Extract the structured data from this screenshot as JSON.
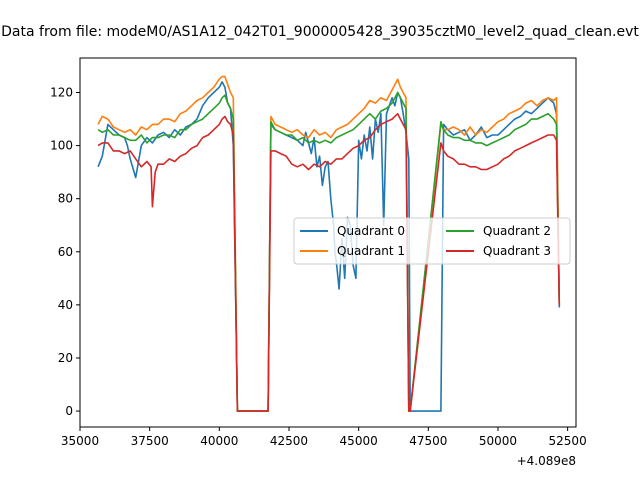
{
  "chart_data": {
    "type": "line",
    "title": "Data from file: modeM0/AS1A12_042T01_9000005428_39035cztM0_level2_quad_clean.evt",
    "x_offset_label": "+4.089e8",
    "xlim": [
      35000,
      52800
    ],
    "ylim": [
      -6,
      133
    ],
    "x_ticks": [
      35000,
      37500,
      40000,
      42500,
      45000,
      47500,
      50000,
      52500
    ],
    "x_tick_labels": [
      "35000",
      "37500",
      "40000",
      "42500",
      "45000",
      "47500",
      "50000",
      "52500"
    ],
    "y_ticks": [
      0,
      20,
      40,
      60,
      80,
      100,
      120
    ],
    "y_tick_labels": [
      "0",
      "20",
      "40",
      "60",
      "80",
      "100",
      "120"
    ],
    "legend": {
      "placement": "center-right",
      "columns": 2
    },
    "series": [
      {
        "name": "Quadrant 0",
        "color": "#1f77b4",
        "x": [
          35650,
          35800,
          36000,
          36200,
          36400,
          36600,
          36700,
          36800,
          37000,
          37200,
          37400,
          37600,
          37800,
          38000,
          38200,
          38400,
          38600,
          38800,
          39000,
          39200,
          39400,
          39600,
          39800,
          40000,
          40100,
          40200,
          40300,
          40400,
          40500,
          40650,
          41750,
          41850,
          42000,
          42200,
          42400,
          42600,
          42800,
          43000,
          43100,
          43200,
          43300,
          43400,
          43500,
          43600,
          43700,
          43800,
          43900,
          44000,
          44100,
          44150,
          44200,
          44300,
          44400,
          44500,
          44600,
          44700,
          44800,
          44900,
          45000,
          45100,
          45200,
          45300,
          45400,
          45500,
          45600,
          45700,
          45800,
          45900,
          46000,
          46100,
          46200,
          46300,
          46400,
          46500,
          46600,
          46700,
          46800,
          46850,
          47950,
          48050,
          48200,
          48400,
          48600,
          48800,
          49000,
          49200,
          49400,
          49600,
          49800,
          50000,
          50200,
          50400,
          50600,
          50800,
          51000,
          51200,
          51400,
          51600,
          51800,
          52000,
          52100,
          52200
        ],
        "values": [
          92,
          96,
          108,
          106,
          104,
          103,
          100,
          95,
          88,
          100,
          103,
          101,
          104,
          105,
          103,
          106,
          104,
          107,
          108,
          110,
          115,
          118,
          120,
          122,
          124,
          122,
          116,
          114,
          100,
          0,
          0,
          108,
          106,
          105,
          104,
          103,
          102,
          100,
          105,
          101,
          97,
          103,
          92,
          96,
          85,
          92,
          94,
          80,
          70,
          60,
          56,
          46,
          65,
          50,
          73,
          70,
          55,
          50,
          102,
          95,
          104,
          98,
          107,
          95,
          110,
          105,
          112,
          70,
          112,
          115,
          118,
          115,
          120,
          118,
          112,
          105,
          95,
          0,
          0,
          108,
          106,
          104,
          105,
          106,
          102,
          104,
          107,
          103,
          104,
          104,
          106,
          108,
          110,
          111,
          113,
          112,
          114,
          116,
          118,
          116,
          112,
          39
        ]
      },
      {
        "name": "Quadrant 1",
        "color": "#ff7f0e",
        "x": [
          35650,
          35800,
          36000,
          36200,
          36400,
          36600,
          36800,
          37000,
          37200,
          37400,
          37600,
          37800,
          38000,
          38200,
          38400,
          38600,
          38800,
          39000,
          39200,
          39400,
          39600,
          39800,
          40000,
          40100,
          40200,
          40300,
          40400,
          40500,
          40650,
          41750,
          41850,
          42000,
          42200,
          42400,
          42600,
          42800,
          43000,
          43200,
          43400,
          43600,
          43800,
          44000,
          44200,
          44400,
          44600,
          44800,
          45000,
          45200,
          45400,
          45600,
          45800,
          46000,
          46200,
          46400,
          46500,
          46600,
          46700,
          46800,
          46850,
          47950,
          48050,
          48200,
          48400,
          48600,
          48800,
          49000,
          49200,
          49400,
          49600,
          49800,
          50000,
          50200,
          50400,
          50600,
          50800,
          51000,
          51200,
          51400,
          51600,
          51800,
          52000,
          52100,
          52200
        ],
        "values": [
          108,
          111,
          110,
          107,
          106,
          105,
          106,
          104,
          107,
          106,
          108,
          108,
          110,
          110,
          109,
          112,
          113,
          115,
          117,
          118,
          120,
          122,
          125,
          126,
          126,
          123,
          120,
          118,
          0,
          0,
          111,
          108,
          107,
          106,
          105,
          106,
          104,
          103,
          106,
          104,
          105,
          103,
          106,
          107,
          108,
          110,
          112,
          114,
          117,
          116,
          118,
          117,
          121,
          125,
          122,
          120,
          118,
          0,
          0,
          108,
          106,
          106,
          107,
          106,
          104,
          107,
          104,
          106,
          105,
          107,
          109,
          110,
          112,
          113,
          114,
          116,
          117,
          115,
          117,
          118,
          117,
          118,
          42
        ]
      },
      {
        "name": "Quadrant 2",
        "color": "#2ca02c",
        "x": [
          35650,
          35800,
          36000,
          36200,
          36400,
          36600,
          36800,
          37000,
          37200,
          37400,
          37600,
          37800,
          38000,
          38200,
          38400,
          38600,
          38800,
          39000,
          39200,
          39400,
          39600,
          39800,
          40000,
          40100,
          40200,
          40300,
          40400,
          40500,
          40650,
          41750,
          41850,
          42000,
          42200,
          42400,
          42600,
          42800,
          43000,
          43200,
          43400,
          43600,
          43800,
          44000,
          44200,
          44400,
          44600,
          44800,
          45000,
          45200,
          45400,
          45600,
          45800,
          46000,
          46200,
          46400,
          46500,
          46600,
          46700,
          46800,
          46850,
          47950,
          48050,
          48200,
          48400,
          48600,
          48800,
          49000,
          49200,
          49400,
          49600,
          49800,
          50000,
          50200,
          50400,
          50600,
          50800,
          51000,
          51200,
          51400,
          51600,
          51800,
          52000,
          52100,
          52200
        ],
        "values": [
          106,
          105,
          106,
          104,
          104,
          103,
          102,
          102,
          104,
          101,
          103,
          103,
          104,
          104,
          103,
          106,
          106,
          108,
          109,
          110,
          112,
          114,
          116,
          118,
          119,
          116,
          114,
          110,
          0,
          0,
          109,
          106,
          105,
          104,
          104,
          102,
          103,
          101,
          102,
          101,
          102,
          101,
          103,
          104,
          105,
          106,
          108,
          110,
          112,
          110,
          113,
          114,
          116,
          120,
          118,
          116,
          114,
          0,
          0,
          109,
          106,
          104,
          103,
          103,
          102,
          102,
          101,
          101,
          100,
          101,
          102,
          103,
          104,
          106,
          107,
          108,
          110,
          110,
          111,
          112,
          110,
          108,
          40
        ]
      },
      {
        "name": "Quadrant 3",
        "color": "#d62728",
        "x": [
          35650,
          35800,
          36000,
          36200,
          36400,
          36600,
          36800,
          37000,
          37200,
          37400,
          37550,
          37600,
          37700,
          37800,
          38000,
          38200,
          38400,
          38600,
          38800,
          39000,
          39200,
          39400,
          39600,
          39800,
          40000,
          40100,
          40200,
          40300,
          40400,
          40500,
          40650,
          41750,
          41850,
          42000,
          42200,
          42400,
          42600,
          42800,
          43000,
          43200,
          43400,
          43600,
          43800,
          44000,
          44200,
          44400,
          44600,
          44800,
          45000,
          45200,
          45400,
          45600,
          45800,
          46000,
          46200,
          46400,
          46500,
          46600,
          46700,
          46800,
          46850,
          47950,
          48050,
          48200,
          48400,
          48600,
          48800,
          49000,
          49200,
          49400,
          49600,
          49800,
          50000,
          50200,
          50400,
          50600,
          50800,
          51000,
          51200,
          51400,
          51600,
          51800,
          52000,
          52100,
          52200
        ],
        "values": [
          100,
          101,
          101,
          98,
          98,
          97,
          98,
          95,
          92,
          94,
          92,
          77,
          90,
          93,
          93,
          95,
          94,
          96,
          97,
          99,
          100,
          103,
          104,
          106,
          108,
          110,
          111,
          109,
          108,
          104,
          0,
          0,
          98,
          98,
          97,
          96,
          93,
          92,
          93,
          91,
          93,
          92,
          94,
          93,
          95,
          95,
          97,
          99,
          100,
          102,
          103,
          106,
          108,
          109,
          110,
          112,
          110,
          108,
          106,
          0,
          0,
          101,
          98,
          96,
          95,
          93,
          93,
          92,
          92,
          91,
          91,
          92,
          93,
          95,
          96,
          98,
          99,
          100,
          101,
          102,
          103,
          104,
          104,
          102,
          40
        ]
      }
    ]
  }
}
